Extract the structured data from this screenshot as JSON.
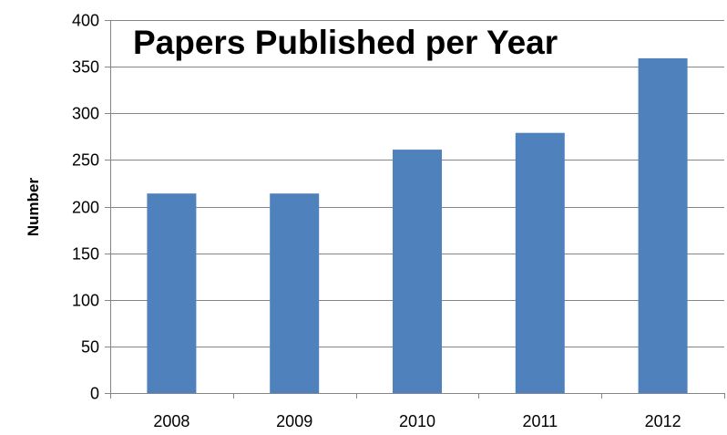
{
  "chart_data": {
    "type": "bar",
    "title": "Papers Published per Year",
    "xlabel": "",
    "ylabel": "Number",
    "categories": [
      "2008",
      "2009",
      "2010",
      "2011",
      "2012"
    ],
    "values": [
      214,
      214,
      261,
      279,
      359
    ],
    "ylim": [
      0,
      400
    ],
    "yticks": [
      0,
      50,
      100,
      150,
      200,
      250,
      300,
      350,
      400
    ],
    "grid": true,
    "legend": "none",
    "bar_color": "#4F81BD",
    "grid_color": "#868686"
  }
}
